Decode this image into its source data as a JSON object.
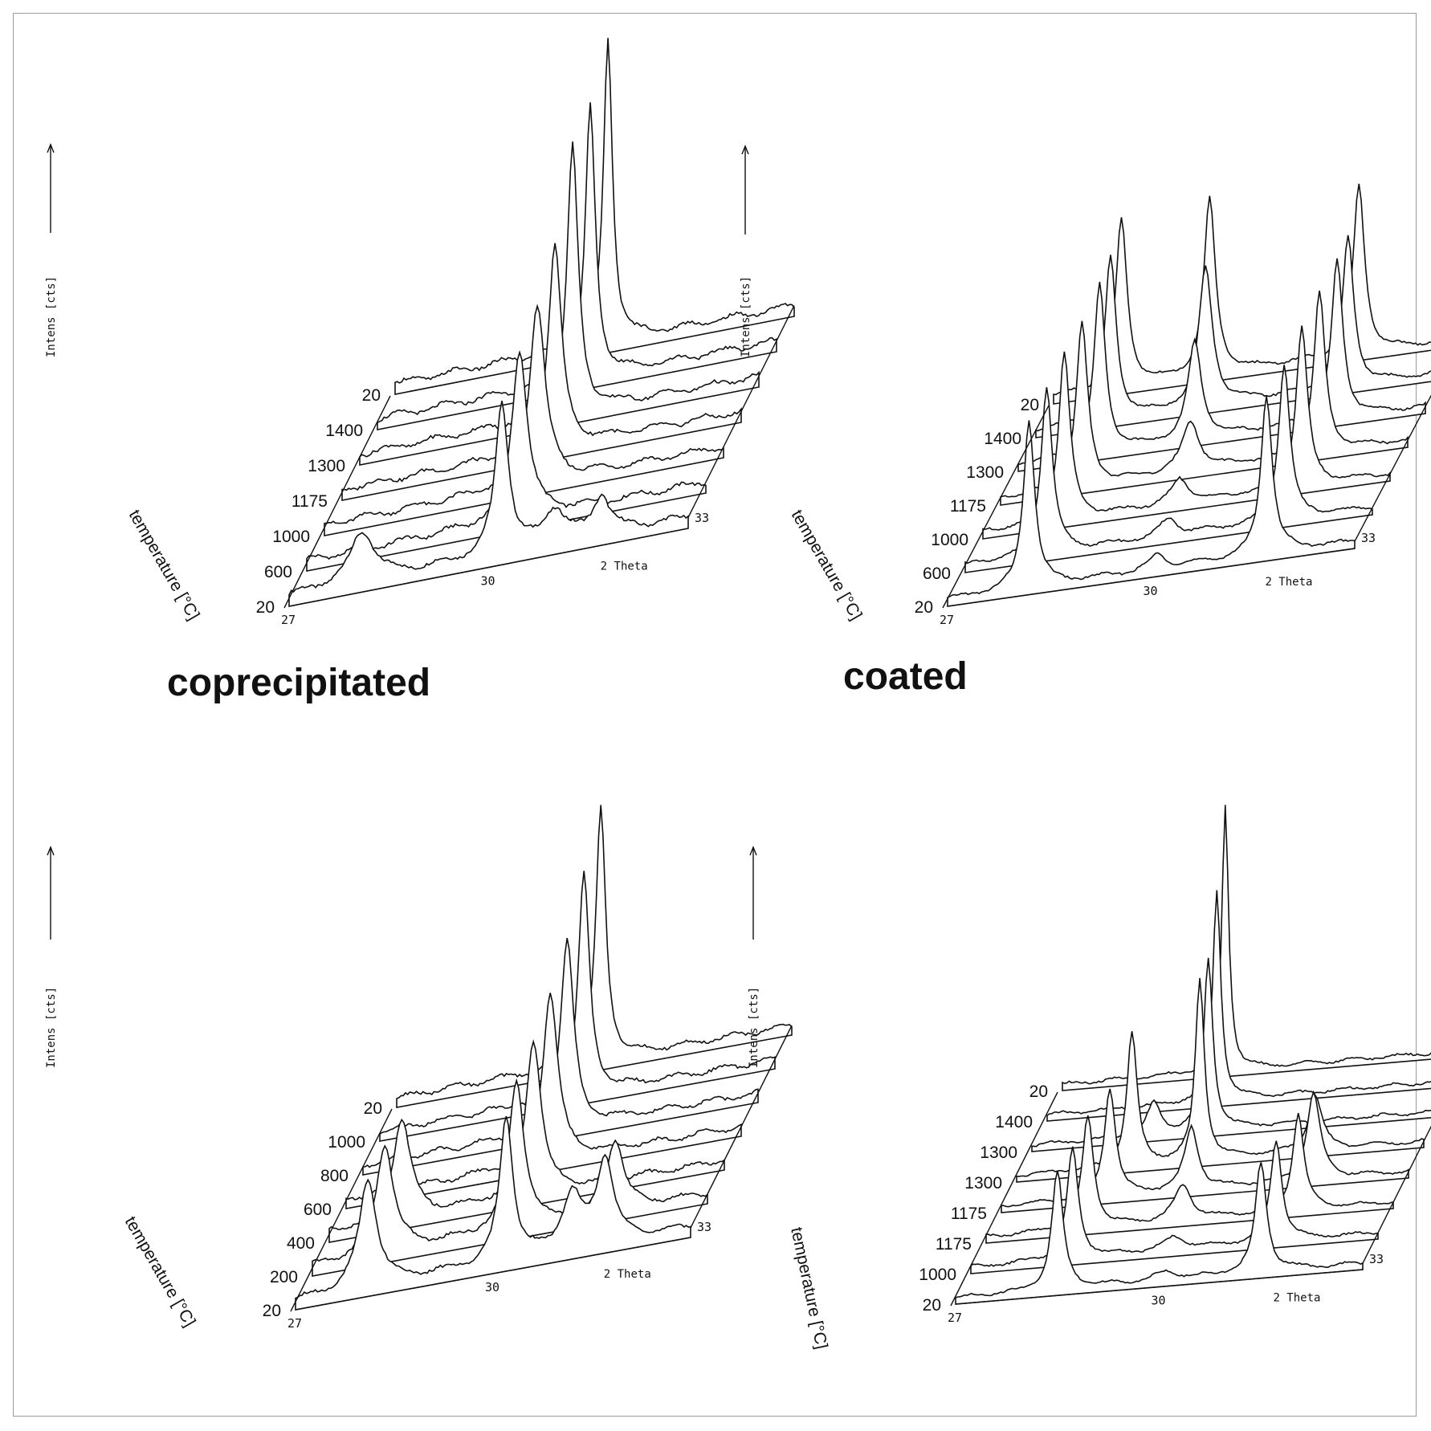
{
  "captions": {
    "left": "coprecipitated",
    "right": "coated"
  },
  "colors": {
    "ink": "#111111",
    "background": "#ffffff",
    "border": "#9a9a9a"
  },
  "chart_data": [
    {
      "id": "coprecipitated-top",
      "type": "line",
      "ylabel": "Intens [cts]",
      "xlabel": "2 Theta",
      "zlabel": "temperature [°C]",
      "x_ticks": [
        "27",
        "30",
        "33"
      ],
      "x_range": [
        27,
        33
      ],
      "temperatures": [
        "20",
        "600",
        "1000",
        "1175",
        "1300",
        "1400",
        "20"
      ],
      "series": [
        {
          "name": "20",
          "peaks": [
            {
              "x": 28.1,
              "h": 0.18,
              "w": 0.22
            },
            {
              "x": 30.2,
              "h": 0.55,
              "w": 0.12
            },
            {
              "x": 31.0,
              "h": 0.12,
              "w": 0.2
            },
            {
              "x": 31.7,
              "h": 0.14,
              "w": 0.15
            }
          ]
        },
        {
          "name": "600",
          "peaks": [
            {
              "x": 30.2,
              "h": 0.62,
              "w": 0.14
            }
          ]
        },
        {
          "name": "1000",
          "peaks": [
            {
              "x": 30.2,
              "h": 0.66,
              "w": 0.14
            }
          ]
        },
        {
          "name": "1175",
          "peaks": [
            {
              "x": 30.2,
              "h": 0.74,
              "w": 0.12
            }
          ]
        },
        {
          "name": "1300",
          "peaks": [
            {
              "x": 30.2,
              "h": 0.98,
              "w": 0.1
            }
          ]
        },
        {
          "name": "1400",
          "peaks": [
            {
              "x": 30.2,
              "h": 1.0,
              "w": 0.09
            }
          ]
        },
        {
          "name": "20",
          "peaks": [
            {
              "x": 30.2,
              "h": 1.12,
              "w": 0.08
            }
          ]
        }
      ]
    },
    {
      "id": "coated-top",
      "type": "line",
      "ylabel": "Intens [cts]",
      "xlabel": "2 Theta",
      "zlabel": "temperature [°C]",
      "x_ticks": [
        "27",
        "30",
        "33"
      ],
      "x_range": [
        27,
        33
      ],
      "temperatures": [
        "20",
        "600",
        "1000",
        "1175",
        "1300",
        "1400",
        "20"
      ],
      "series": [
        {
          "name": "20",
          "peaks": [
            {
              "x": 28.2,
              "h": 0.95,
              "w": 0.1
            },
            {
              "x": 30.1,
              "h": 0.08,
              "w": 0.15
            },
            {
              "x": 31.7,
              "h": 0.9,
              "w": 0.1
            }
          ]
        },
        {
          "name": "600",
          "peaks": [
            {
              "x": 28.2,
              "h": 0.95,
              "w": 0.1
            },
            {
              "x": 30.0,
              "h": 0.1,
              "w": 0.15
            },
            {
              "x": 31.7,
              "h": 0.88,
              "w": 0.1
            }
          ]
        },
        {
          "name": "1000",
          "peaks": [
            {
              "x": 28.2,
              "h": 0.95,
              "w": 0.1
            },
            {
              "x": 29.9,
              "h": 0.14,
              "w": 0.15
            },
            {
              "x": 31.7,
              "h": 0.9,
              "w": 0.1
            }
          ]
        },
        {
          "name": "1175",
          "peaks": [
            {
              "x": 28.2,
              "h": 0.93,
              "w": 0.1
            },
            {
              "x": 29.8,
              "h": 0.28,
              "w": 0.15
            },
            {
              "x": 31.7,
              "h": 0.9,
              "w": 0.1
            }
          ]
        },
        {
          "name": "1300",
          "peaks": [
            {
              "x": 28.2,
              "h": 0.95,
              "w": 0.1
            },
            {
              "x": 29.6,
              "h": 0.55,
              "w": 0.12
            },
            {
              "x": 31.7,
              "h": 0.9,
              "w": 0.1
            }
          ]
        },
        {
          "name": "1400",
          "peaks": [
            {
              "x": 28.1,
              "h": 0.92,
              "w": 0.1
            },
            {
              "x": 29.5,
              "h": 0.78,
              "w": 0.12
            },
            {
              "x": 31.6,
              "h": 0.85,
              "w": 0.1
            }
          ]
        },
        {
          "name": "20",
          "peaks": [
            {
              "x": 28.0,
              "h": 0.95,
              "w": 0.1
            },
            {
              "x": 29.3,
              "h": 1.0,
              "w": 0.1
            },
            {
              "x": 31.5,
              "h": 0.95,
              "w": 0.1
            }
          ]
        }
      ]
    },
    {
      "id": "coprecipitated-bottom",
      "type": "line",
      "ylabel": "Intens [cts]",
      "xlabel": "2 Theta",
      "zlabel": "temperature [°C]",
      "x_ticks": [
        "27",
        "30",
        "33"
      ],
      "x_range": [
        27,
        33
      ],
      "temperatures": [
        "20",
        "200",
        "400",
        "600",
        "800",
        "1000",
        "20"
      ],
      "series": [
        {
          "name": "20",
          "peaks": [
            {
              "x": 28.1,
              "h": 0.45,
              "w": 0.16
            },
            {
              "x": 30.2,
              "h": 0.6,
              "w": 0.12
            },
            {
              "x": 31.2,
              "h": 0.22,
              "w": 0.18
            },
            {
              "x": 31.7,
              "h": 0.35,
              "w": 0.15
            }
          ]
        },
        {
          "name": "200",
          "peaks": [
            {
              "x": 28.1,
              "h": 0.45,
              "w": 0.16
            },
            {
              "x": 30.1,
              "h": 0.62,
              "w": 0.14
            },
            {
              "x": 31.6,
              "h": 0.3,
              "w": 0.15
            }
          ]
        },
        {
          "name": "400",
          "peaks": [
            {
              "x": 28.1,
              "h": 0.42,
              "w": 0.16
            },
            {
              "x": 30.1,
              "h": 0.65,
              "w": 0.14
            }
          ]
        },
        {
          "name": "600",
          "peaks": [
            {
              "x": 30.1,
              "h": 0.7,
              "w": 0.14
            }
          ]
        },
        {
          "name": "800",
          "peaks": [
            {
              "x": 30.1,
              "h": 0.78,
              "w": 0.12
            }
          ]
        },
        {
          "name": "1000",
          "peaks": [
            {
              "x": 30.1,
              "h": 0.92,
              "w": 0.1
            }
          ]
        },
        {
          "name": "20",
          "peaks": [
            {
              "x": 30.1,
              "h": 1.05,
              "w": 0.09
            }
          ]
        }
      ]
    },
    {
      "id": "coated-bottom",
      "type": "line",
      "ylabel": "Intens [cts]",
      "xlabel": "2 Theta",
      "zlabel": "temperature [°C]",
      "x_ticks": [
        "27",
        "30",
        "33"
      ],
      "x_range": [
        27,
        33
      ],
      "temperatures": [
        "20",
        "1000",
        "1175",
        "1175",
        "1300",
        "1300",
        "1400",
        "20"
      ],
      "series": [
        {
          "name": "20",
          "peaks": [
            {
              "x": 28.5,
              "h": 0.75,
              "w": 0.1
            },
            {
              "x": 30.1,
              "h": 0.05,
              "w": 0.2
            },
            {
              "x": 31.5,
              "h": 0.7,
              "w": 0.1
            }
          ]
        },
        {
          "name": "1000",
          "peaks": [
            {
              "x": 28.5,
              "h": 0.7,
              "w": 0.1
            },
            {
              "x": 30.0,
              "h": 0.08,
              "w": 0.2
            },
            {
              "x": 31.5,
              "h": 0.65,
              "w": 0.1
            }
          ]
        },
        {
          "name": "1175",
          "peaks": [
            {
              "x": 28.5,
              "h": 0.72,
              "w": 0.1
            },
            {
              "x": 29.9,
              "h": 0.22,
              "w": 0.15
            },
            {
              "x": 31.6,
              "h": 0.62,
              "w": 0.1
            }
          ]
        },
        {
          "name": "1175",
          "peaks": [
            {
              "x": 28.6,
              "h": 0.7,
              "w": 0.1
            },
            {
              "x": 29.8,
              "h": 0.4,
              "w": 0.12
            },
            {
              "x": 31.6,
              "h": 0.55,
              "w": 0.12
            }
          ]
        },
        {
          "name": "1300",
          "peaks": [
            {
              "x": 28.7,
              "h": 0.85,
              "w": 0.09
            },
            {
              "x": 29.7,
              "h": 1.15,
              "w": 0.08
            },
            {
              "x": 31.4,
              "h": 0.35,
              "w": 0.12
            }
          ]
        },
        {
          "name": "1300",
          "peaks": [
            {
              "x": 28.8,
              "h": 0.2,
              "w": 0.12
            },
            {
              "x": 29.6,
              "h": 1.1,
              "w": 0.08
            }
          ]
        },
        {
          "name": "1400",
          "peaks": [
            {
              "x": 29.5,
              "h": 1.35,
              "w": 0.07
            }
          ]
        },
        {
          "name": "20",
          "peaks": [
            {
              "x": 29.4,
              "h": 1.7,
              "w": 0.06
            }
          ]
        }
      ]
    }
  ]
}
